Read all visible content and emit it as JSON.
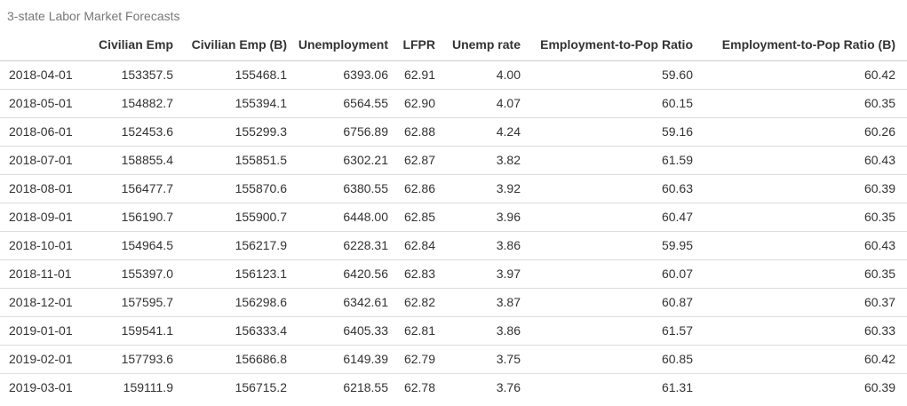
{
  "title": "3-state Labor Market Forecasts",
  "colors": {
    "title_text": "#777777",
    "body_text": "#333333",
    "header_border": "#cccccc",
    "row_border": "#dddddd",
    "background": "#ffffff"
  },
  "chart_data": {
    "type": "table",
    "title": "3-state Labor Market Forecasts",
    "columns": [
      "",
      "Civilian Emp",
      "Civilian Emp (B)",
      "Unemployment",
      "LFPR",
      "Unemp rate",
      "Employment-to-Pop Ratio",
      "Employment-to-Pop Ratio (B)"
    ],
    "rows": [
      [
        "2018-04-01",
        "153357.5",
        "155468.1",
        "6393.06",
        "62.91",
        "4.00",
        "59.60",
        "60.42"
      ],
      [
        "2018-05-01",
        "154882.7",
        "155394.1",
        "6564.55",
        "62.90",
        "4.07",
        "60.15",
        "60.35"
      ],
      [
        "2018-06-01",
        "152453.6",
        "155299.3",
        "6756.89",
        "62.88",
        "4.24",
        "59.16",
        "60.26"
      ],
      [
        "2018-07-01",
        "158855.4",
        "155851.5",
        "6302.21",
        "62.87",
        "3.82",
        "61.59",
        "60.43"
      ],
      [
        "2018-08-01",
        "156477.7",
        "155870.6",
        "6380.55",
        "62.86",
        "3.92",
        "60.63",
        "60.39"
      ],
      [
        "2018-09-01",
        "156190.7",
        "155900.7",
        "6448.00",
        "62.85",
        "3.96",
        "60.47",
        "60.35"
      ],
      [
        "2018-10-01",
        "154964.5",
        "156217.9",
        "6228.31",
        "62.84",
        "3.86",
        "59.95",
        "60.43"
      ],
      [
        "2018-11-01",
        "155397.0",
        "156123.1",
        "6420.56",
        "62.83",
        "3.97",
        "60.07",
        "60.35"
      ],
      [
        "2018-12-01",
        "157595.7",
        "156298.6",
        "6342.61",
        "62.82",
        "3.87",
        "60.87",
        "60.37"
      ],
      [
        "2019-01-01",
        "159541.1",
        "156333.4",
        "6405.33",
        "62.81",
        "3.86",
        "61.57",
        "60.33"
      ],
      [
        "2019-02-01",
        "157793.6",
        "156686.8",
        "6149.39",
        "62.79",
        "3.75",
        "60.85",
        "60.42"
      ],
      [
        "2019-03-01",
        "159111.9",
        "156715.2",
        "6218.55",
        "62.78",
        "3.76",
        "61.31",
        "60.39"
      ]
    ]
  }
}
